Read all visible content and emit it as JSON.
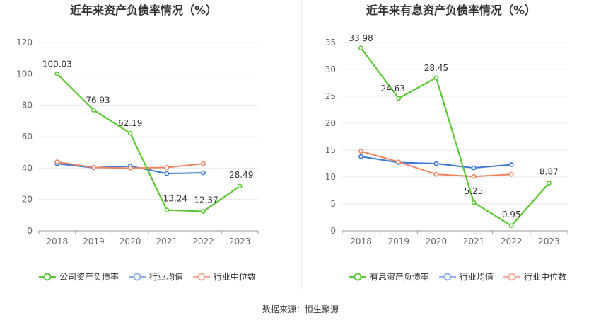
{
  "footer": {
    "source_label": "数据来源：恒生聚源"
  },
  "colors": {
    "company": "#5cc734",
    "industry_avg": "#3b77d5",
    "industry_median": "#ef8462",
    "legend_avg": "#8eb1ea",
    "legend_median": "#f2ae98",
    "grid": "#e8e8ee",
    "axis": "#999999",
    "text": "#333333",
    "tick": "#666666"
  },
  "chart_data": [
    {
      "type": "line",
      "title": "近年来资产负债率情况（%）",
      "categories": [
        "2018",
        "2019",
        "2020",
        "2021",
        "2022",
        "2023"
      ],
      "ylim": [
        0,
        120
      ],
      "yticks": [
        0,
        20,
        40,
        60,
        80,
        100,
        120
      ],
      "grid": true,
      "legend_position": "bottom",
      "series": [
        {
          "name": "公司资产负债率",
          "role": "company",
          "values": [
            100.03,
            76.93,
            62.19,
            13.24,
            12.37,
            28.49
          ],
          "labels": [
            "100.03",
            "76.93",
            "62.19",
            "13.24",
            "12.37",
            "28.49"
          ]
        },
        {
          "name": "行业均值",
          "role": "industry_avg",
          "values": [
            42.8,
            40.2,
            41.3,
            36.5,
            37.0,
            null
          ]
        },
        {
          "name": "行业中位数",
          "role": "industry_median",
          "values": [
            43.9,
            40.4,
            40.0,
            40.4,
            42.8,
            null
          ]
        }
      ]
    },
    {
      "type": "line",
      "title": "近年来有息资产负债率情况（%）",
      "categories": [
        "2018",
        "2019",
        "2020",
        "2021",
        "2022",
        "2023"
      ],
      "ylim": [
        0,
        35
      ],
      "yticks": [
        0,
        5,
        10,
        15,
        20,
        25,
        30,
        35
      ],
      "grid": true,
      "legend_position": "bottom",
      "series": [
        {
          "name": "有息资产负债率",
          "role": "company",
          "values": [
            33.98,
            24.63,
            28.45,
            5.25,
            0.95,
            8.87
          ],
          "labels": [
            "33.98",
            "24.63",
            "28.45",
            "5.25",
            "0.95",
            "8.87"
          ]
        },
        {
          "name": "行业均值",
          "role": "industry_avg",
          "values": [
            13.8,
            12.7,
            12.5,
            11.7,
            12.3,
            null
          ]
        },
        {
          "name": "行业中位数",
          "role": "industry_median",
          "values": [
            14.8,
            12.8,
            10.5,
            10.1,
            10.5,
            null
          ]
        }
      ]
    }
  ]
}
